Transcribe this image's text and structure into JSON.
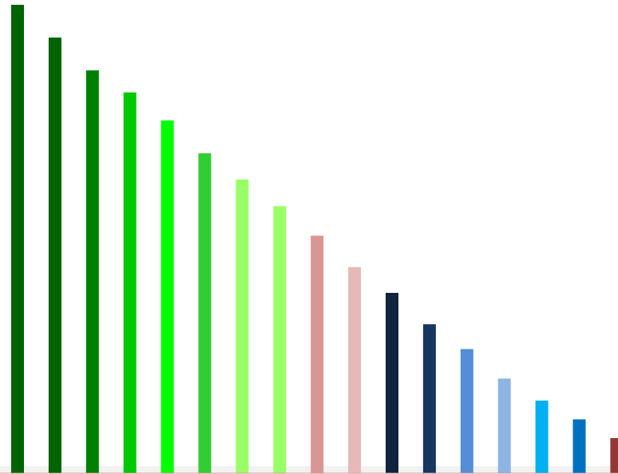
{
  "chart_data": {
    "type": "bar",
    "title": "",
    "xlabel": "",
    "ylabel": "",
    "grid": false,
    "ylim": [
      0,
      100
    ],
    "values": [
      100,
      93,
      86,
      81.3,
      75.3,
      68.3,
      62.7,
      57,
      50.7,
      44,
      38.5,
      31.8,
      26.5,
      20.2,
      15.5,
      11.5,
      7.5
    ],
    "colors": [
      "#006400",
      "#006400",
      "#008000",
      "#00c800",
      "#00ff00",
      "#32cd32",
      "#99ff66",
      "#99ff66",
      "#d99694",
      "#e6b9b8",
      "#10243e",
      "#17375e",
      "#558ed5",
      "#8eb4e3",
      "#00b0f0",
      "#0070c0",
      "#953735"
    ]
  }
}
